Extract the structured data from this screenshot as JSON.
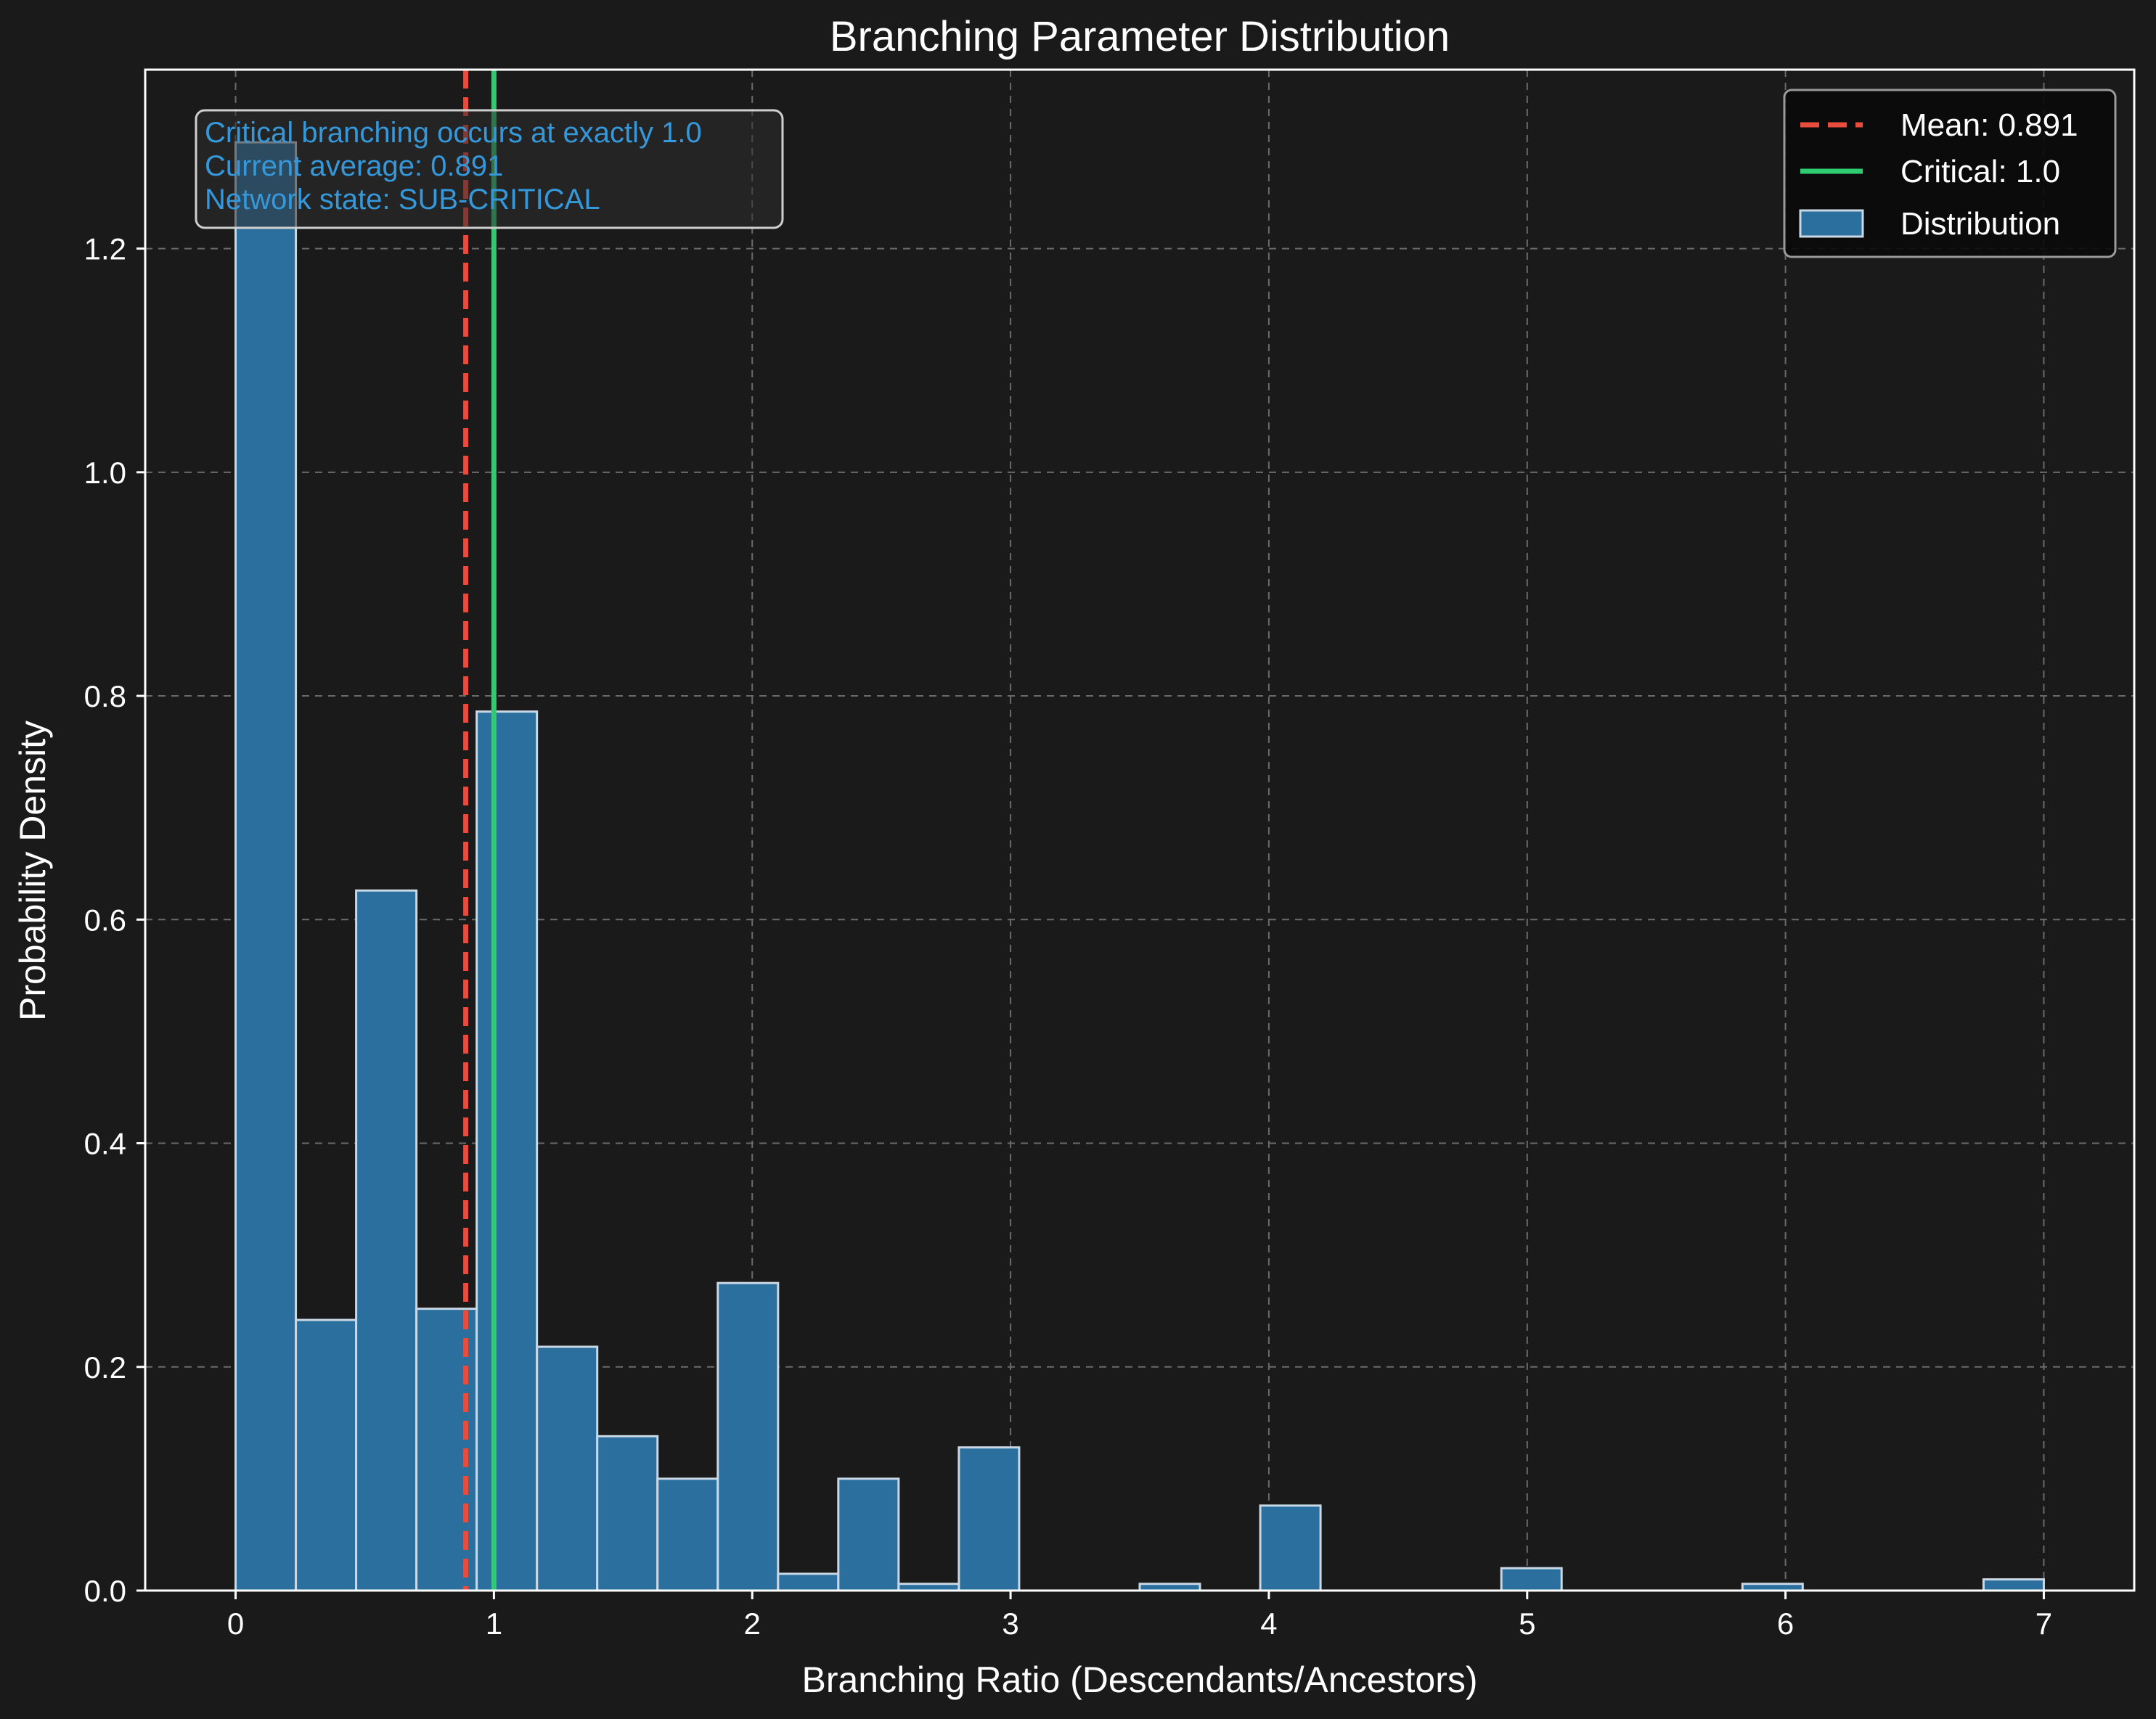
{
  "chart_data": {
    "type": "bar",
    "title": "Branching Parameter Distribution",
    "xlabel": "Branching Ratio (Descendants/Ancestors)",
    "ylabel": "Probability Density",
    "xlim": [
      -0.35,
      7.35
    ],
    "ylim": [
      0,
      1.36
    ],
    "xticks": [
      0,
      1,
      2,
      3,
      4,
      5,
      6,
      7
    ],
    "yticks": [
      0.0,
      0.2,
      0.4,
      0.6,
      0.8,
      1.0,
      1.2
    ],
    "ytick_labels": [
      "0.0",
      "0.2",
      "0.4",
      "0.6",
      "0.8",
      "1.0",
      "1.2"
    ],
    "grid": true,
    "legend_position": "top-right",
    "bin_width": 0.2333,
    "bins": [
      {
        "x0": 0.0,
        "density": 1.295
      },
      {
        "x0": 0.2333,
        "density": 0.242
      },
      {
        "x0": 0.4667,
        "density": 0.626
      },
      {
        "x0": 0.7,
        "density": 0.252
      },
      {
        "x0": 0.9333,
        "density": 0.786
      },
      {
        "x0": 1.1667,
        "density": 0.218
      },
      {
        "x0": 1.4,
        "density": 0.138
      },
      {
        "x0": 1.6333,
        "density": 0.1
      },
      {
        "x0": 1.8667,
        "density": 0.275
      },
      {
        "x0": 2.1,
        "density": 0.015
      },
      {
        "x0": 2.3333,
        "density": 0.1
      },
      {
        "x0": 2.5667,
        "density": 0.006
      },
      {
        "x0": 2.8,
        "density": 0.128
      },
      {
        "x0": 3.0333,
        "density": 0.0
      },
      {
        "x0": 3.2667,
        "density": 0.0
      },
      {
        "x0": 3.5,
        "density": 0.006
      },
      {
        "x0": 3.7333,
        "density": 0.0
      },
      {
        "x0": 3.9667,
        "density": 0.076
      },
      {
        "x0": 4.2,
        "density": 0.0
      },
      {
        "x0": 4.4333,
        "density": 0.0
      },
      {
        "x0": 4.6667,
        "density": 0.0
      },
      {
        "x0": 4.9,
        "density": 0.02
      },
      {
        "x0": 5.1333,
        "density": 0.0
      },
      {
        "x0": 5.3667,
        "density": 0.0
      },
      {
        "x0": 5.6,
        "density": 0.0
      },
      {
        "x0": 5.8333,
        "density": 0.006
      },
      {
        "x0": 6.0667,
        "density": 0.0
      },
      {
        "x0": 6.3,
        "density": 0.0
      },
      {
        "x0": 6.5333,
        "density": 0.0
      },
      {
        "x0": 6.7667,
        "density": 0.01
      }
    ],
    "reference_lines": [
      {
        "name": "Mean: 0.891",
        "x": 0.891,
        "color": "#e74c3c",
        "style": "dashed"
      },
      {
        "name": "Critical: 1.0",
        "x": 1.0,
        "color": "#2ecc71",
        "style": "solid"
      }
    ],
    "histogram_legend": "Distribution",
    "annotation_lines": [
      "Critical branching occurs at exactly 1.0",
      "Current average: 0.891",
      "Network state: SUB-CRITICAL"
    ],
    "colors": {
      "background": "#1a1a1a",
      "bar_fill": "#2b6f9e",
      "bar_edge": "#c9d8e4",
      "text": "#ffffff",
      "annotation_text": "#3498db",
      "grid": "#6a6a6a",
      "legend_bg": "#0a0a0a"
    }
  }
}
